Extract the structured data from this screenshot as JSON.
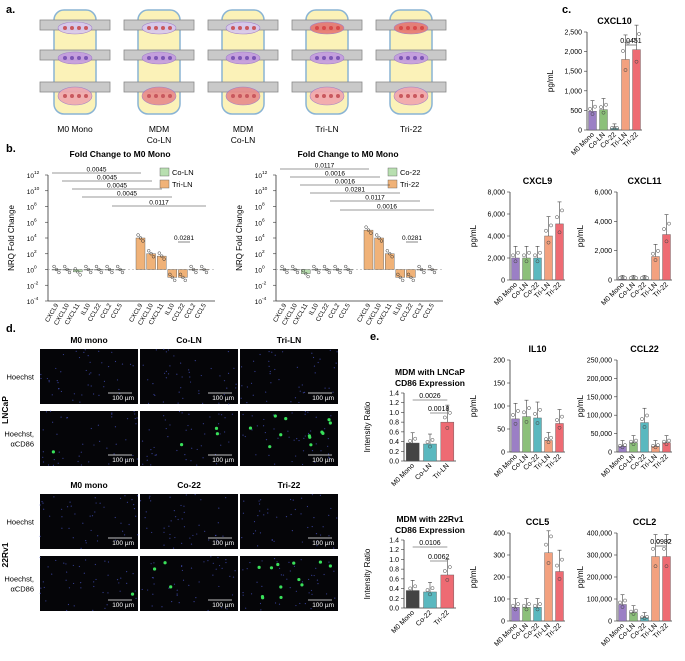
{
  "panel_labels": {
    "a": "a.",
    "b": "b.",
    "c": "c.",
    "d": "d.",
    "e": "e."
  },
  "colors": {
    "m0": "#9b7fc5",
    "coLN": "#8cc07a",
    "co22": "#5ab8bf",
    "triLN": "#f3a17f",
    "tri22": "#ee6b73",
    "green_legend": "#b8dfb0",
    "orange_bar": "#f0b278",
    "dark": "#444444"
  },
  "panel_a": {
    "wells": [
      "M0 Mono",
      "MDM Co-LN",
      "MDM Co-LN",
      "Tri-LN",
      "Tri-22"
    ]
  },
  "panel_b": {
    "left": {
      "title": "Fold Change to M0 Mono",
      "ylabel": "NRQ Fold Change",
      "yticks": [
        "10",
        "10",
        "10",
        "10",
        "10",
        "10",
        "10",
        "10",
        "10"
      ],
      "yexp": [
        "12",
        "10",
        "8",
        "6",
        "4",
        "2",
        "0",
        "-2",
        "-4"
      ],
      "legend": [
        "Co-LN",
        "Tri-LN"
      ],
      "genes_a": [
        "CXCL9",
        "CXCL10",
        "CXCL11",
        "IL10",
        "CCL22",
        "CCL2",
        "CCL5"
      ],
      "genes_b": [
        "CXCL9",
        "CXCL10",
        "CXCL11",
        "IL10",
        "CCL22",
        "CCL2",
        "CCL5"
      ],
      "pvals": [
        "0.0045",
        "0.0045",
        "0.0045",
        "0.0045",
        "0.0117",
        "0.0281"
      ]
    },
    "right": {
      "title": "Fold Change to M0 Mono",
      "ylabel": "NRQ Fold Change",
      "legend": [
        "Co-22",
        "Tri-22"
      ],
      "genes_a": [
        "CXCL9",
        "CXCL10",
        "CXCL11",
        "IL10",
        "CCL22",
        "CCL2",
        "CCL5"
      ],
      "genes_b": [
        "CXCL9",
        "CXCL10",
        "CXCL11",
        "IL10",
        "CCL22",
        "CCL2",
        "CCL5"
      ],
      "pvals": [
        "0.0117",
        "0.0016",
        "0.0016",
        "0.0281",
        "0.0117",
        "0.0016",
        "0.0281"
      ]
    }
  },
  "chart_data": [
    {
      "type": "bar",
      "title": "Fold Change to M0 Mono",
      "ylabel": "NRQ Fold Change",
      "log_scale": true,
      "categories": [
        "CXCL9",
        "CXCL10",
        "CXCL11",
        "IL10",
        "CCL22",
        "CCL2",
        "CCL5"
      ],
      "series": [
        {
          "name": "Co-LN",
          "values": [
            1,
            1,
            0.5,
            1,
            1,
            1,
            1
          ]
        },
        {
          "name": "Tri-LN",
          "values": [
            10000,
            100,
            50,
            0.1,
            0.1,
            1,
            1
          ]
        }
      ]
    },
    {
      "type": "bar",
      "title": "Fold Change to M0 Mono",
      "ylabel": "NRQ Fold Change",
      "log_scale": true,
      "categories": [
        "CXCL9",
        "CXCL10",
        "CXCL11",
        "IL10",
        "CCL22",
        "CCL2",
        "CCL5"
      ],
      "series": [
        {
          "name": "Co-22",
          "values": [
            1,
            1,
            0.3,
            1,
            1,
            1,
            1
          ]
        },
        {
          "name": "Tri-22",
          "values": [
            100000,
            10000,
            100,
            0.1,
            0.1,
            1,
            1
          ]
        }
      ]
    },
    {
      "type": "bar",
      "title": "CXCL10",
      "ylabel": "pg/mL",
      "ylim": [
        0,
        2500
      ],
      "categories": [
        "M0 Mono",
        "Co-LN",
        "Co-22",
        "Tri-LN",
        "Tri-22"
      ],
      "values": [
        480,
        520,
        40,
        1800,
        2050
      ],
      "pvals": [
        "0.0451"
      ]
    },
    {
      "type": "bar",
      "title": "CXCL9",
      "ylabel": "pg/mL",
      "ylim": [
        0,
        8000
      ],
      "categories": [
        "M0 Mono",
        "Co-LN",
        "Co-22",
        "Tri-LN",
        "Tri-22"
      ],
      "values": [
        2000,
        2000,
        2000,
        4000,
        5100
      ]
    },
    {
      "type": "bar",
      "title": "CXCL11",
      "ylabel": "pg/mL",
      "ylim": [
        0,
        6000
      ],
      "categories": [
        "M0 Mono",
        "Co-LN",
        "Co-22",
        "Tri-LN",
        "Tri-22"
      ],
      "values": [
        30,
        30,
        30,
        1600,
        3100
      ]
    },
    {
      "type": "bar",
      "title": "IL10",
      "ylabel": "pg/mL",
      "ylim": [
        0,
        200
      ],
      "categories": [
        "M0 Mono",
        "Co-LN",
        "Co-22",
        "Tri-LN",
        "Tri-22"
      ],
      "values": [
        72,
        77,
        74,
        25,
        62
      ]
    },
    {
      "type": "bar",
      "title": "CCL22",
      "ylabel": "pg/mL",
      "ylim": [
        0,
        250000
      ],
      "categories": [
        "M0 Mono",
        "Co-LN",
        "Co-22",
        "Tri-LN",
        "Tri-22"
      ],
      "values": [
        15000,
        25000,
        80000,
        15000,
        25000
      ]
    },
    {
      "type": "bar",
      "title": "CCL5",
      "ylabel": "pg/mL",
      "ylim": [
        0,
        400
      ],
      "categories": [
        "M0 Mono",
        "Co-LN",
        "Co-22",
        "Tri-LN",
        "Tri-22"
      ],
      "values": [
        62,
        62,
        62,
        310,
        225
      ]
    },
    {
      "type": "bar",
      "title": "CCL2",
      "ylabel": "pg/mL",
      "ylim": [
        0,
        400000
      ],
      "categories": [
        "M0 Mono",
        "Co-LN",
        "Co-22",
        "Tri-LN",
        "Tri-22"
      ],
      "values": [
        75000,
        38000,
        15000,
        293000,
        293000
      ],
      "pvals": [
        "0.0982"
      ]
    },
    {
      "type": "bar",
      "title": "MDM with LNCaP CD86 Expression",
      "ylabel": "Intensity Ratio",
      "ylim": [
        0,
        1.4
      ],
      "categories": [
        "M0 Mono",
        "Co-LN",
        "Tri-LN"
      ],
      "values": [
        0.37,
        0.35,
        0.8
      ],
      "pvals": [
        "0.0026",
        "0.0018"
      ]
    },
    {
      "type": "bar",
      "title": "MDM with 22Rv1 CD86 Expression",
      "ylabel": "Intensity Ratio",
      "ylim": [
        0,
        1.4
      ],
      "categories": [
        "M0 Mono",
        "Co-22",
        "Tri-22"
      ],
      "values": [
        0.36,
        0.33,
        0.68
      ],
      "pvals": [
        "0.0106",
        "0.0062"
      ]
    }
  ],
  "panel_d": {
    "top_headers": [
      "M0 mono",
      "Co-LN",
      "Tri-LN"
    ],
    "bottom_headers": [
      "M0 mono",
      "Co-22",
      "Tri-22"
    ],
    "row_labels": [
      "Hoechst",
      "Hoechst, αCD86"
    ],
    "group_labels": [
      "LNCaP",
      "22Rv1"
    ],
    "scale": "100 µm"
  },
  "panel_e": {
    "top_title": [
      "MDM with LNCaP",
      "CD86 Expression"
    ],
    "bottom_title": [
      "MDM with 22Rv1",
      "CD86 Expression"
    ]
  },
  "c_titles": [
    "CXCL10",
    "CXCL9",
    "CXCL11",
    "IL10",
    "CCL22",
    "CCL5",
    "CCL2"
  ],
  "c_yticks": {
    "CXCL10": [
      "0",
      "500",
      "1,000",
      "1,500",
      "2,000",
      "2,500"
    ],
    "CXCL9": [
      "0",
      "2,000",
      "4,000",
      "6,000",
      "8,000"
    ],
    "CXCL11": [
      "0",
      "2,000",
      "4,000",
      "6,000"
    ],
    "IL10": [
      "0",
      "50",
      "100",
      "150",
      "200"
    ],
    "CCL22": [
      "0",
      "50,000",
      "100,000",
      "150,000",
      "200,000",
      "250,000"
    ],
    "CCL5": [
      "0",
      "100",
      "200",
      "300",
      "400"
    ],
    "CCL2": [
      "0",
      "100,000",
      "200,000",
      "300,000",
      "400,000"
    ]
  },
  "c_cats": [
    "M0 Mono",
    "Co-LN",
    "Co-22",
    "Tri-LN",
    "Tri-22"
  ],
  "c_ylabel": "pg/mL",
  "e_ylabel": "Intensity Ratio",
  "e_yticks": [
    "0.0",
    "0.2",
    "0.4",
    "0.6",
    "0.8",
    "1.0",
    "1.2",
    "1.4"
  ]
}
